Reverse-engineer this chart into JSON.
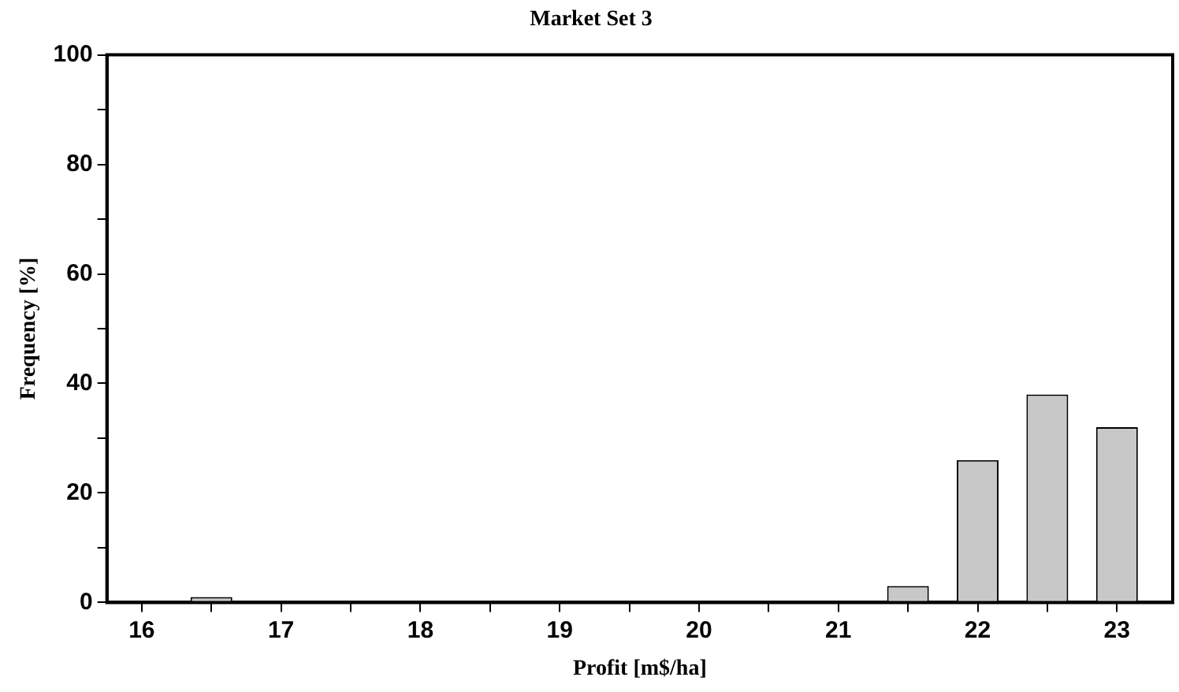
{
  "chart_data": {
    "type": "bar",
    "title": "Market Set 3",
    "xlabel": "Profit [m$/ha]",
    "ylabel": "Frequency [%]",
    "x": [
      16.5,
      21.5,
      22,
      22.5,
      23
    ],
    "values": [
      1,
      3,
      26,
      38,
      32
    ],
    "color": "#c8c8c8",
    "xlim": [
      15.75,
      23.4
    ],
    "xticks": [
      16,
      {
        "value": 16.5,
        "label": null
      },
      17,
      {
        "value": 17.5,
        "label": null
      },
      18,
      {
        "value": 18.5,
        "label": null
      },
      19,
      {
        "value": 19.5,
        "label": null
      },
      20,
      {
        "value": 20.5,
        "label": null
      },
      21,
      {
        "value": 21.5,
        "label": null
      },
      22,
      {
        "value": 22.5,
        "label": null
      },
      23
    ],
    "ylim": [
      0,
      100
    ],
    "yticks": [
      0,
      {
        "value": 10,
        "label": null
      },
      20,
      {
        "value": 30,
        "label": null
      },
      40,
      {
        "value": 50,
        "label": null
      },
      60,
      {
        "value": 70,
        "label": null
      },
      80,
      {
        "value": 90,
        "label": null
      },
      100
    ],
    "grid": false,
    "legend": false
  }
}
